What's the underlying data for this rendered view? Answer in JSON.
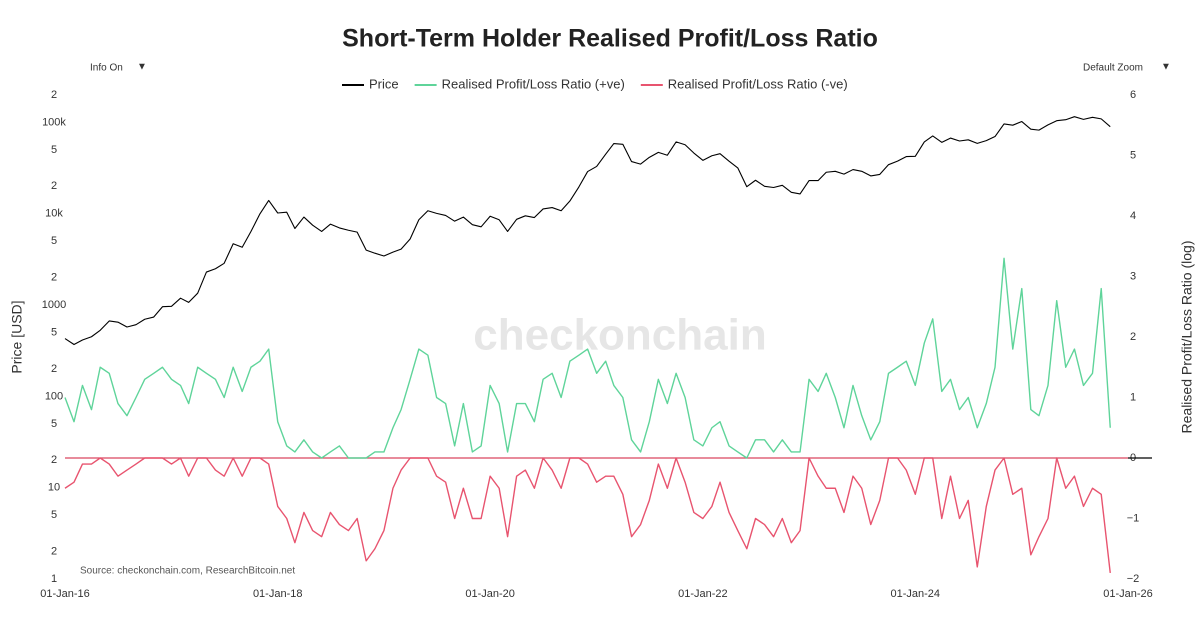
{
  "chart_data": {
    "type": "line",
    "title": "Short-Term Holder Realised Profit/Loss Ratio",
    "controls": {
      "info": "Info On",
      "zoom": "Default Zoom",
      "arrow": "▼"
    },
    "watermark": "checkonchain",
    "source": "Source: checkonchain.com, ResearchBitcoin.net",
    "ylabel": "Price [USD]",
    "y2label": "Realised Profit/Loss Ratio (log)",
    "ylog": true,
    "x": [
      "2016-01",
      "2016-02",
      "2016-03",
      "2016-04",
      "2016-05",
      "2016-06",
      "2016-07",
      "2016-08",
      "2016-09",
      "2016-10",
      "2016-11",
      "2016-12",
      "2017-01",
      "2017-02",
      "2017-03",
      "2017-04",
      "2017-05",
      "2017-06",
      "2017-07",
      "2017-08",
      "2017-09",
      "2017-10",
      "2017-11",
      "2017-12",
      "2018-01",
      "2018-02",
      "2018-03",
      "2018-04",
      "2018-05",
      "2018-06",
      "2018-07",
      "2018-08",
      "2018-09",
      "2018-10",
      "2018-11",
      "2018-12",
      "2019-01",
      "2019-02",
      "2019-03",
      "2019-04",
      "2019-05",
      "2019-06",
      "2019-07",
      "2019-08",
      "2019-09",
      "2019-10",
      "2019-11",
      "2019-12",
      "2020-01",
      "2020-02",
      "2020-03",
      "2020-04",
      "2020-05",
      "2020-06",
      "2020-07",
      "2020-08",
      "2020-09",
      "2020-10",
      "2020-11",
      "2020-12",
      "2021-01",
      "2021-02",
      "2021-03",
      "2021-04",
      "2021-05",
      "2021-06",
      "2021-07",
      "2021-08",
      "2021-09",
      "2021-10",
      "2021-11",
      "2021-12",
      "2022-01",
      "2022-02",
      "2022-03",
      "2022-04",
      "2022-05",
      "2022-06",
      "2022-07",
      "2022-08",
      "2022-09",
      "2022-10",
      "2022-11",
      "2022-12",
      "2023-01",
      "2023-02",
      "2023-03",
      "2023-04",
      "2023-05",
      "2023-06",
      "2023-07",
      "2023-08",
      "2023-09",
      "2023-10",
      "2023-11",
      "2023-12",
      "2024-01",
      "2024-02",
      "2024-03",
      "2024-04",
      "2024-05",
      "2024-06",
      "2024-07",
      "2024-08",
      "2024-09",
      "2024-10",
      "2024-11",
      "2024-12",
      "2025-01",
      "2025-02",
      "2025-03",
      "2025-04",
      "2025-05",
      "2025-06",
      "2025-07",
      "2025-08",
      "2025-09",
      "2025-10",
      "2025-11"
    ],
    "series": [
      {
        "name": "Price",
        "color": "#000000",
        "values": [
          430,
          370,
          415,
          450,
          530,
          670,
          650,
          575,
          610,
          700,
          740,
          960,
          970,
          1190,
          1070,
          1350,
          2300,
          2500,
          2870,
          4700,
          4300,
          6400,
          10000,
          14000,
          10200,
          10400,
          6900,
          9200,
          7500,
          6400,
          7700,
          7000,
          6600,
          6300,
          4000,
          3700,
          3450,
          3800,
          4100,
          5300,
          8600,
          10800,
          10100,
          9600,
          8300,
          9200,
          7600,
          7200,
          9400,
          8600,
          6400,
          8700,
          9500,
          9100,
          11300,
          11700,
          10800,
          13800,
          19700,
          29000,
          33000,
          45000,
          58800,
          57700,
          37300,
          35000,
          41500,
          47100,
          43800,
          61300,
          57000,
          46300,
          38500,
          43200,
          45500,
          37700,
          31800,
          19800,
          23300,
          20000,
          19400,
          20500,
          17200,
          16500,
          23100,
          23100,
          28500,
          29200,
          27200,
          30500,
          29200,
          26000,
          27000,
          34500,
          37700,
          42300,
          42600,
          61200,
          71300,
          60600,
          67500,
          62700,
          64600,
          59000,
          63300,
          70200,
          96400,
          93400,
          102400,
          84400,
          82500,
          94200,
          104600,
          107200,
          115700,
          108200,
          114000,
          109500,
          90000
        ]
      },
      {
        "name": "Realised Profit/Loss Ratio (+ve)",
        "color": "#5fd49a",
        "axis": "y2",
        "values": [
          1.0,
          0.6,
          1.2,
          0.8,
          1.5,
          1.4,
          0.9,
          0.7,
          1.0,
          1.3,
          1.4,
          1.5,
          1.3,
          1.2,
          0.9,
          1.5,
          1.4,
          1.3,
          1.0,
          1.5,
          1.1,
          1.5,
          1.6,
          1.8,
          0.6,
          0.2,
          0.1,
          0.3,
          0.1,
          0,
          0.1,
          0.2,
          0,
          0,
          0,
          0.1,
          0.1,
          0.5,
          0.8,
          1.3,
          1.8,
          1.7,
          1.0,
          0.9,
          0.2,
          0.9,
          0.1,
          0.2,
          1.2,
          0.9,
          0.1,
          0.9,
          0.9,
          0.6,
          1.3,
          1.4,
          1.0,
          1.6,
          1.7,
          1.8,
          1.4,
          1.6,
          1.2,
          1.0,
          0.3,
          0.1,
          0.6,
          1.3,
          0.9,
          1.4,
          1.0,
          0.3,
          0.2,
          0.5,
          0.6,
          0.2,
          0.1,
          0,
          0.3,
          0.3,
          0.1,
          0.3,
          0.1,
          0.1,
          1.3,
          1.1,
          1.4,
          1.0,
          0.5,
          1.2,
          0.7,
          0.3,
          0.6,
          1.4,
          1.5,
          1.6,
          1.2,
          1.9,
          2.3,
          1.1,
          1.3,
          0.8,
          1.0,
          0.5,
          0.9,
          1.5,
          3.3,
          1.8,
          2.8,
          0.8,
          0.7,
          1.2,
          2.6,
          1.5,
          1.8,
          1.2,
          1.4,
          2.8,
          0.5
        ]
      },
      {
        "name": "Realised Profit/Loss Ratio (-ve)",
        "color": "#e8546f",
        "axis": "y2",
        "values": [
          -0.5,
          -0.4,
          -0.1,
          -0.1,
          0,
          -0.1,
          -0.3,
          -0.2,
          -0.1,
          0,
          0,
          0,
          -0.1,
          0,
          -0.3,
          0,
          0,
          -0.2,
          -0.3,
          0,
          -0.3,
          0,
          0,
          -0.1,
          -0.8,
          -1.0,
          -1.4,
          -0.9,
          -1.2,
          -1.3,
          -0.9,
          -1.1,
          -1.2,
          -1.0,
          -1.7,
          -1.5,
          -1.2,
          -0.5,
          -0.2,
          0,
          0,
          0,
          -0.3,
          -0.4,
          -1.0,
          -0.5,
          -1.0,
          -1.0,
          -0.3,
          -0.5,
          -1.3,
          -0.3,
          -0.2,
          -0.5,
          0,
          -0.2,
          -0.5,
          0,
          0,
          -0.1,
          -0.4,
          -0.3,
          -0.3,
          -0.6,
          -1.3,
          -1.1,
          -0.7,
          -0.1,
          -0.5,
          0,
          -0.4,
          -0.9,
          -1.0,
          -0.8,
          -0.4,
          -0.9,
          -1.2,
          -1.5,
          -1.0,
          -1.1,
          -1.3,
          -1.0,
          -1.4,
          -1.2,
          0,
          -0.3,
          -0.5,
          -0.5,
          -0.9,
          -0.3,
          -0.5,
          -1.1,
          -0.7,
          0,
          0,
          -0.2,
          -0.6,
          0,
          0,
          -1.0,
          -0.3,
          -1.0,
          -0.7,
          -1.8,
          -0.8,
          -0.2,
          0,
          -0.6,
          -0.5,
          -1.6,
          -1.3,
          -1.0,
          0,
          -0.5,
          -0.3,
          -0.8,
          -0.5,
          -0.6,
          -1.9
        ]
      }
    ],
    "xlim": [
      "2016-01",
      "2026-01"
    ],
    "xticks": [
      {
        "value": "2016-01",
        "label": "01-Jan-16"
      },
      {
        "value": "2018-01",
        "label": "01-Jan-18"
      },
      {
        "value": "2020-01",
        "label": "01-Jan-20"
      },
      {
        "value": "2022-01",
        "label": "01-Jan-22"
      },
      {
        "value": "2024-01",
        "label": "01-Jan-24"
      },
      {
        "value": "2026-01",
        "label": "01-Jan-26"
      }
    ],
    "ylim": [
      1,
      200000
    ],
    "yticks": [
      1,
      {
        "value": 2,
        "label": "2"
      },
      {
        "value": 5,
        "label": "5"
      },
      10,
      {
        "value": 20,
        "label": "2"
      },
      {
        "value": 50,
        "label": "5"
      },
      100,
      {
        "value": 200,
        "label": "2"
      },
      {
        "value": 500,
        "label": "5"
      },
      1000,
      {
        "value": 2000,
        "label": "2"
      },
      {
        "value": 5000,
        "label": "5"
      },
      {
        "value": 10000,
        "label": "10k"
      },
      {
        "value": 20000,
        "label": "2"
      },
      {
        "value": 50000,
        "label": "5"
      },
      {
        "value": 100000,
        "label": "100k"
      },
      {
        "value": 200000,
        "label": "2"
      }
    ],
    "y2lim": [
      -2,
      6
    ],
    "y2ticks": [
      {
        "value": -2,
        "label": "−2"
      },
      {
        "value": -1,
        "label": "−1"
      },
      0,
      1,
      2,
      3,
      4,
      5,
      6
    ]
  }
}
